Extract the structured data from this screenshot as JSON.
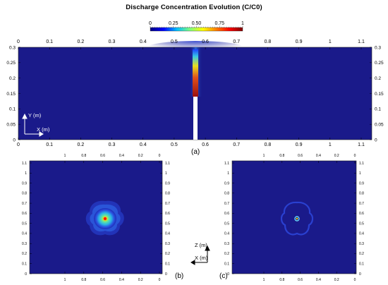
{
  "title": "Discharge Concentration Evolution (C/C0)",
  "colorbar": {
    "ticks": [
      "0",
      "0.25",
      "0.50",
      "0.75",
      "1"
    ],
    "colors": [
      "#00007f",
      "#0000ff",
      "#00bfff",
      "#7fff7f",
      "#ffff00",
      "#ff7f00",
      "#ff0000",
      "#7f0000"
    ]
  },
  "panel_a": {
    "label": "(a)",
    "x_ticks": [
      "0",
      "0.1",
      "0.2",
      "0.3",
      "0.4",
      "0.5",
      "0.6",
      "0.7",
      "0.8",
      "0.9",
      "1",
      "1.1"
    ],
    "y_ticks": [
      "0",
      "0.05",
      "0.1",
      "0.15",
      "0.2",
      "0.25",
      "0.3"
    ],
    "axis_y": "Y (m)",
    "axis_x": "X (m)",
    "background": "#1a1a8a"
  },
  "panel_b": {
    "label": "(b)",
    "x_ticks": [
      "1",
      "0.8",
      "0.6",
      "0.4",
      "0.2",
      "0"
    ],
    "y_ticks": [
      "0",
      "0.1",
      "0.2",
      "0.3",
      "0.4",
      "0.5",
      "0.6",
      "0.7",
      "0.8",
      "0.9",
      "1",
      "1.1"
    ]
  },
  "panel_c": {
    "label": "(c)",
    "x_ticks": [
      "1",
      "0.8",
      "0.6",
      "0.4",
      "0.2",
      "0"
    ],
    "y_ticks": [
      "0",
      "0.1",
      "0.2",
      "0.3",
      "0.4",
      "0.5",
      "0.6",
      "0.7",
      "0.8",
      "0.9",
      "1",
      "1.1"
    ],
    "axis_z": "Z (m)",
    "axis_x": "X (m)"
  }
}
